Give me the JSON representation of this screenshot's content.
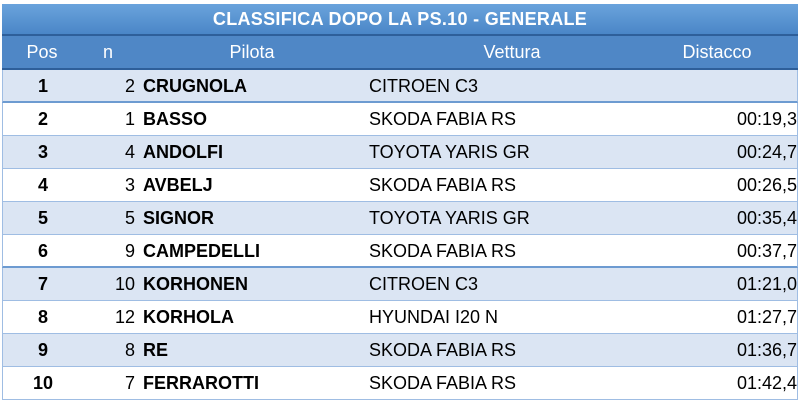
{
  "title": "CLASSIFICA DOPO LA PS.10 - GENERALE",
  "headers": {
    "pos": "Pos",
    "n": "n",
    "pilota": "Pilota",
    "vettura": "Vettura",
    "distacco": "Distacco"
  },
  "rows": [
    {
      "pos": "1",
      "n": "2",
      "pilota": "CRUGNOLA",
      "vettura": "CITROEN C3",
      "distacco": ""
    },
    {
      "pos": "2",
      "n": "1",
      "pilota": "BASSO",
      "vettura": "SKODA FABIA RS",
      "distacco": "00:19,3"
    },
    {
      "pos": "3",
      "n": "4",
      "pilota": "ANDOLFI",
      "vettura": "TOYOTA YARIS GR",
      "distacco": "00:24,7"
    },
    {
      "pos": "4",
      "n": "3",
      "pilota": "AVBELJ",
      "vettura": "SKODA FABIA RS",
      "distacco": "00:26,5"
    },
    {
      "pos": "5",
      "n": "5",
      "pilota": "SIGNOR",
      "vettura": "TOYOTA YARIS GR",
      "distacco": "00:35,4"
    },
    {
      "pos": "6",
      "n": "9",
      "pilota": "CAMPEDELLI",
      "vettura": "SKODA FABIA RS",
      "distacco": "00:37,7"
    },
    {
      "pos": "7",
      "n": "10",
      "pilota": "KORHONEN",
      "vettura": "CITROEN C3",
      "distacco": "01:21,0"
    },
    {
      "pos": "8",
      "n": "12",
      "pilota": "KORHOLA",
      "vettura": "HYUNDAI I20 N",
      "distacco": "01:27,7"
    },
    {
      "pos": "9",
      "n": "8",
      "pilota": "RE",
      "vettura": "SKODA FABIA RS",
      "distacco": "01:36,7"
    },
    {
      "pos": "10",
      "n": "7",
      "pilota": "FERRAROTTI",
      "vettura": "SKODA FABIA RS",
      "distacco": "01:42,4"
    }
  ],
  "colors": {
    "title_bg": "#5b95d3",
    "header_bg": "#4f87c6",
    "row_alt_bg": "#dbe5f3",
    "row_bg": "#ffffff"
  }
}
